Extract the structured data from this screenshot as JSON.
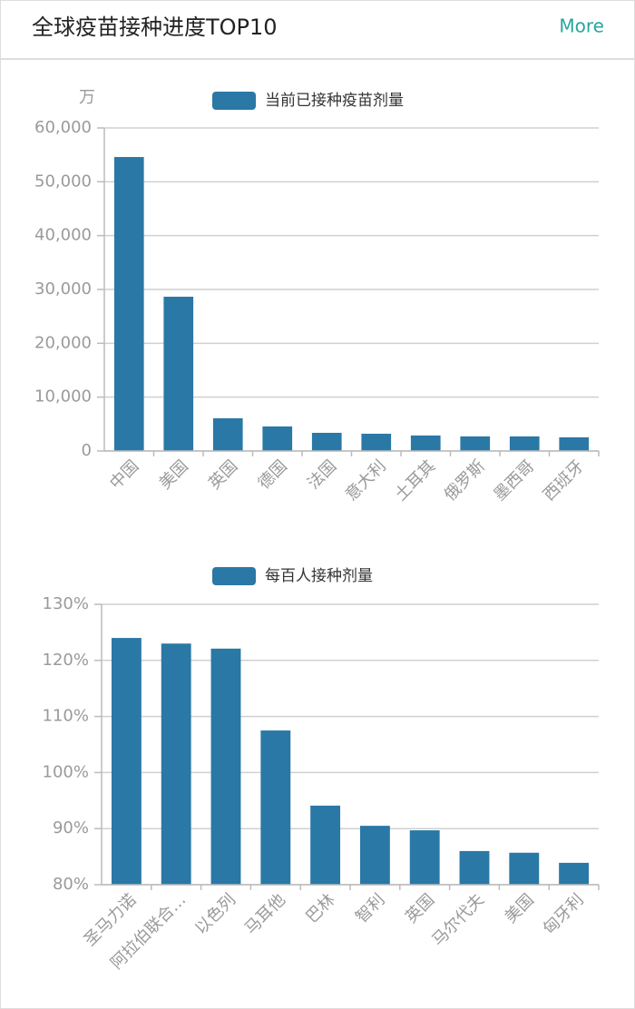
{
  "header": {
    "title": "全球疫苗接种进度TOP10",
    "more": "More"
  },
  "chart_data": [
    {
      "type": "bar",
      "y_unit": "万",
      "categories": [
        "中国",
        "美国",
        "英国",
        "德国",
        "法国",
        "意大利",
        "土耳其",
        "俄罗斯",
        "墨西哥",
        "西班牙"
      ],
      "series": [
        {
          "name": "当前已接种疫苗剂量",
          "color": "#2a78a6",
          "values": [
            54600,
            28650,
            6070,
            4550,
            3370,
            3200,
            2870,
            2700,
            2700,
            2530
          ]
        }
      ],
      "ylim": [
        0,
        60000
      ],
      "yticks": [
        0,
        {
          "value": 10000,
          "label": "10,000"
        },
        {
          "value": 20000,
          "label": "20,000"
        },
        {
          "value": 30000,
          "label": "30,000"
        },
        {
          "value": 40000,
          "label": "40,000"
        },
        {
          "value": 50000,
          "label": "50,000"
        },
        {
          "value": 60000,
          "label": "60,000"
        }
      ],
      "grid": true
    },
    {
      "type": "bar",
      "categories": [
        "圣马力诺",
        "阿拉伯联合…",
        "以色列",
        "马耳他",
        "巴林",
        "智利",
        "英国",
        "马尔代夫",
        "美国",
        "匈牙利"
      ],
      "series": [
        {
          "name": "每百人接种剂量",
          "color": "#2a78a6",
          "values": [
            124.0,
            123.0,
            122.1,
            107.5,
            94.1,
            90.5,
            89.7,
            86.0,
            85.7,
            83.9
          ]
        }
      ],
      "ylim": [
        80,
        130
      ],
      "yticks": [
        {
          "value": 80,
          "label": "80%"
        },
        {
          "value": 90,
          "label": "90%"
        },
        {
          "value": 100,
          "label": "100%"
        },
        {
          "value": 110,
          "label": "110%"
        },
        {
          "value": 120,
          "label": "120%"
        },
        {
          "value": 130,
          "label": "130%"
        }
      ],
      "grid": true
    }
  ]
}
